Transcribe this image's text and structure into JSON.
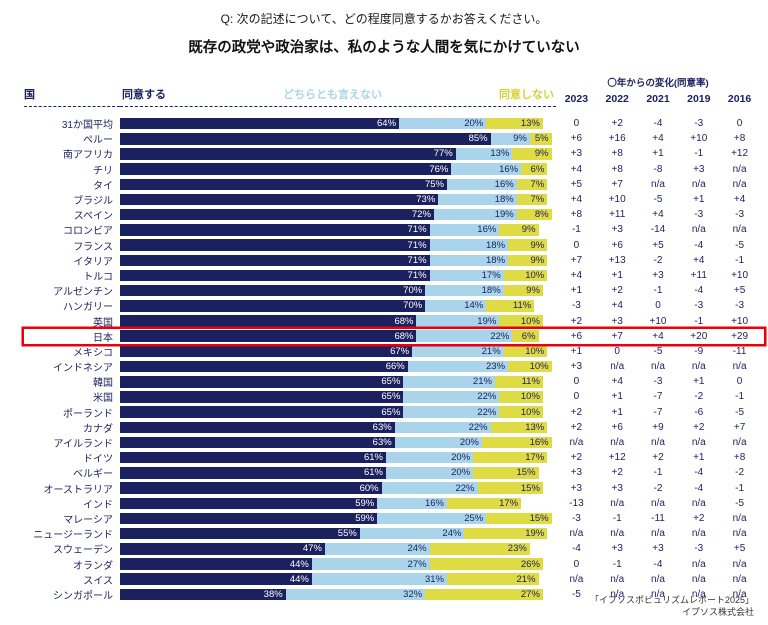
{
  "header": {
    "question": "Q: 次の記述について、どの程度同意するかお答えください。",
    "statement": "既存の政党や政治家は、私のような人間を気にかけていない"
  },
  "table": {
    "country_header": "国",
    "legend": {
      "agree": "同意する",
      "neutral": "どちらとも言えない",
      "disagree": "同意しない"
    },
    "change_header": "〇年からの変化(同意率)",
    "years": [
      "2023",
      "2022",
      "2021",
      "2019",
      "2016"
    ]
  },
  "colors": {
    "agree": "#1b205f",
    "neutral": "#a9d4e9",
    "disagree": "#dfdb45",
    "highlight_border": "#e8000d"
  },
  "footer": {
    "source": "「イプソスポピュリズムレポート2025」",
    "company": "イプソス株式会社"
  },
  "chart_data": {
    "type": "bar",
    "stacked": true,
    "orientation": "horizontal",
    "unit": "%",
    "value_range": [
      0,
      100
    ],
    "title": "既存の政党や政治家は、私のような人間を気にかけていない",
    "legend": [
      "同意する",
      "どちらとも言えない",
      "同意しない"
    ],
    "change_columns": [
      "2023",
      "2022",
      "2021",
      "2019",
      "2016"
    ],
    "rows": [
      {
        "country": "31か国平均",
        "agree": 64,
        "neutral": 20,
        "disagree": 13,
        "changes": [
          "0",
          "+2",
          "-4",
          "-3",
          "0"
        ],
        "highlight": false
      },
      {
        "country": "ペルー",
        "agree": 85,
        "neutral": 9,
        "disagree": 5,
        "changes": [
          "+6",
          "+16",
          "+4",
          "+10",
          "+8"
        ],
        "highlight": false
      },
      {
        "country": "南アフリカ",
        "agree": 77,
        "neutral": 13,
        "disagree": 9,
        "changes": [
          "+3",
          "+8",
          "+1",
          "-1",
          "+12"
        ],
        "highlight": false
      },
      {
        "country": "チリ",
        "agree": 76,
        "neutral": 16,
        "disagree": 6,
        "changes": [
          "+4",
          "+8",
          "-8",
          "+3",
          "n/a"
        ],
        "highlight": false
      },
      {
        "country": "タイ",
        "agree": 75,
        "neutral": 16,
        "disagree": 7,
        "changes": [
          "+5",
          "+7",
          "n/a",
          "n/a",
          "n/a"
        ],
        "highlight": false
      },
      {
        "country": "ブラジル",
        "agree": 73,
        "neutral": 18,
        "disagree": 7,
        "changes": [
          "+4",
          "+10",
          "-5",
          "+1",
          "+4"
        ],
        "highlight": false
      },
      {
        "country": "スペイン",
        "agree": 72,
        "neutral": 19,
        "disagree": 8,
        "changes": [
          "+8",
          "+11",
          "+4",
          "-3",
          "-3"
        ],
        "highlight": false
      },
      {
        "country": "コロンビア",
        "agree": 71,
        "neutral": 16,
        "disagree": 9,
        "changes": [
          "-1",
          "+3",
          "-14",
          "n/a",
          "n/a"
        ],
        "highlight": false
      },
      {
        "country": "フランス",
        "agree": 71,
        "neutral": 18,
        "disagree": 9,
        "changes": [
          "0",
          "+6",
          "+5",
          "-4",
          "-5"
        ],
        "highlight": false
      },
      {
        "country": "イタリア",
        "agree": 71,
        "neutral": 18,
        "disagree": 9,
        "changes": [
          "+7",
          "+13",
          "-2",
          "+4",
          "-1"
        ],
        "highlight": false
      },
      {
        "country": "トルコ",
        "agree": 71,
        "neutral": 17,
        "disagree": 10,
        "changes": [
          "+4",
          "+1",
          "+3",
          "+11",
          "+10"
        ],
        "highlight": false
      },
      {
        "country": "アルゼンチン",
        "agree": 70,
        "neutral": 18,
        "disagree": 9,
        "changes": [
          "+1",
          "+2",
          "-1",
          "-4",
          "+5"
        ],
        "highlight": false
      },
      {
        "country": "ハンガリー",
        "agree": 70,
        "neutral": 14,
        "disagree": 11,
        "changes": [
          "-3",
          "+4",
          "0",
          "-3",
          "-3"
        ],
        "highlight": false
      },
      {
        "country": "英国",
        "agree": 68,
        "neutral": 19,
        "disagree": 10,
        "changes": [
          "+2",
          "+3",
          "+10",
          "-1",
          "+10"
        ],
        "highlight": false
      },
      {
        "country": "日本",
        "agree": 68,
        "neutral": 22,
        "disagree": 6,
        "changes": [
          "+6",
          "+7",
          "+4",
          "+20",
          "+29"
        ],
        "highlight": true
      },
      {
        "country": "メキシコ",
        "agree": 67,
        "neutral": 21,
        "disagree": 10,
        "changes": [
          "+1",
          "0",
          "-5",
          "-9",
          "-11"
        ],
        "highlight": false
      },
      {
        "country": "インドネシア",
        "agree": 66,
        "neutral": 23,
        "disagree": 10,
        "changes": [
          "+3",
          "n/a",
          "n/a",
          "n/a",
          "n/a"
        ],
        "highlight": false
      },
      {
        "country": "韓国",
        "agree": 65,
        "neutral": 21,
        "disagree": 11,
        "changes": [
          "0",
          "+4",
          "-3",
          "+1",
          "0"
        ],
        "highlight": false
      },
      {
        "country": "米国",
        "agree": 65,
        "neutral": 22,
        "disagree": 10,
        "changes": [
          "0",
          "+1",
          "-7",
          "-2",
          "-1"
        ],
        "highlight": false
      },
      {
        "country": "ポーランド",
        "agree": 65,
        "neutral": 22,
        "disagree": 10,
        "changes": [
          "+2",
          "+1",
          "-7",
          "-6",
          "-5"
        ],
        "highlight": false
      },
      {
        "country": "カナダ",
        "agree": 63,
        "neutral": 22,
        "disagree": 13,
        "changes": [
          "+2",
          "+6",
          "+9",
          "+2",
          "+7"
        ],
        "highlight": false
      },
      {
        "country": "アイルランド",
        "agree": 63,
        "neutral": 20,
        "disagree": 16,
        "changes": [
          "n/a",
          "n/a",
          "n/a",
          "n/a",
          "n/a"
        ],
        "highlight": false
      },
      {
        "country": "ドイツ",
        "agree": 61,
        "neutral": 20,
        "disagree": 17,
        "changes": [
          "+2",
          "+12",
          "+2",
          "+1",
          "+8"
        ],
        "highlight": false
      },
      {
        "country": "ベルギー",
        "agree": 61,
        "neutral": 20,
        "disagree": 15,
        "changes": [
          "+3",
          "+2",
          "-1",
          "-4",
          "-2"
        ],
        "highlight": false
      },
      {
        "country": "オーストラリア",
        "agree": 60,
        "neutral": 22,
        "disagree": 15,
        "changes": [
          "+3",
          "+3",
          "-2",
          "-4",
          "-1"
        ],
        "highlight": false
      },
      {
        "country": "インド",
        "agree": 59,
        "neutral": 16,
        "disagree": 17,
        "changes": [
          "-13",
          "n/a",
          "n/a",
          "n/a",
          "-5"
        ],
        "highlight": false
      },
      {
        "country": "マレーシア",
        "agree": 59,
        "neutral": 25,
        "disagree": 15,
        "changes": [
          "-3",
          "-1",
          "-11",
          "+2",
          "n/a"
        ],
        "highlight": false
      },
      {
        "country": "ニュージーランド",
        "agree": 55,
        "neutral": 24,
        "disagree": 19,
        "changes": [
          "n/a",
          "n/a",
          "n/a",
          "n/a",
          "n/a"
        ],
        "highlight": false
      },
      {
        "country": "スウェーデン",
        "agree": 47,
        "neutral": 24,
        "disagree": 23,
        "changes": [
          "-4",
          "+3",
          "+3",
          "-3",
          "+5"
        ],
        "highlight": false
      },
      {
        "country": "オランダ",
        "agree": 44,
        "neutral": 27,
        "disagree": 26,
        "changes": [
          "0",
          "-1",
          "-4",
          "n/a",
          "n/a"
        ],
        "highlight": false
      },
      {
        "country": "スイス",
        "agree": 44,
        "neutral": 31,
        "disagree": 21,
        "changes": [
          "n/a",
          "n/a",
          "n/a",
          "n/a",
          "n/a"
        ],
        "highlight": false
      },
      {
        "country": "シンガポール",
        "agree": 38,
        "neutral": 32,
        "disagree": 27,
        "changes": [
          "-5",
          "n/a",
          "n/a",
          "n/a",
          "n/a"
        ],
        "highlight": false
      }
    ]
  }
}
